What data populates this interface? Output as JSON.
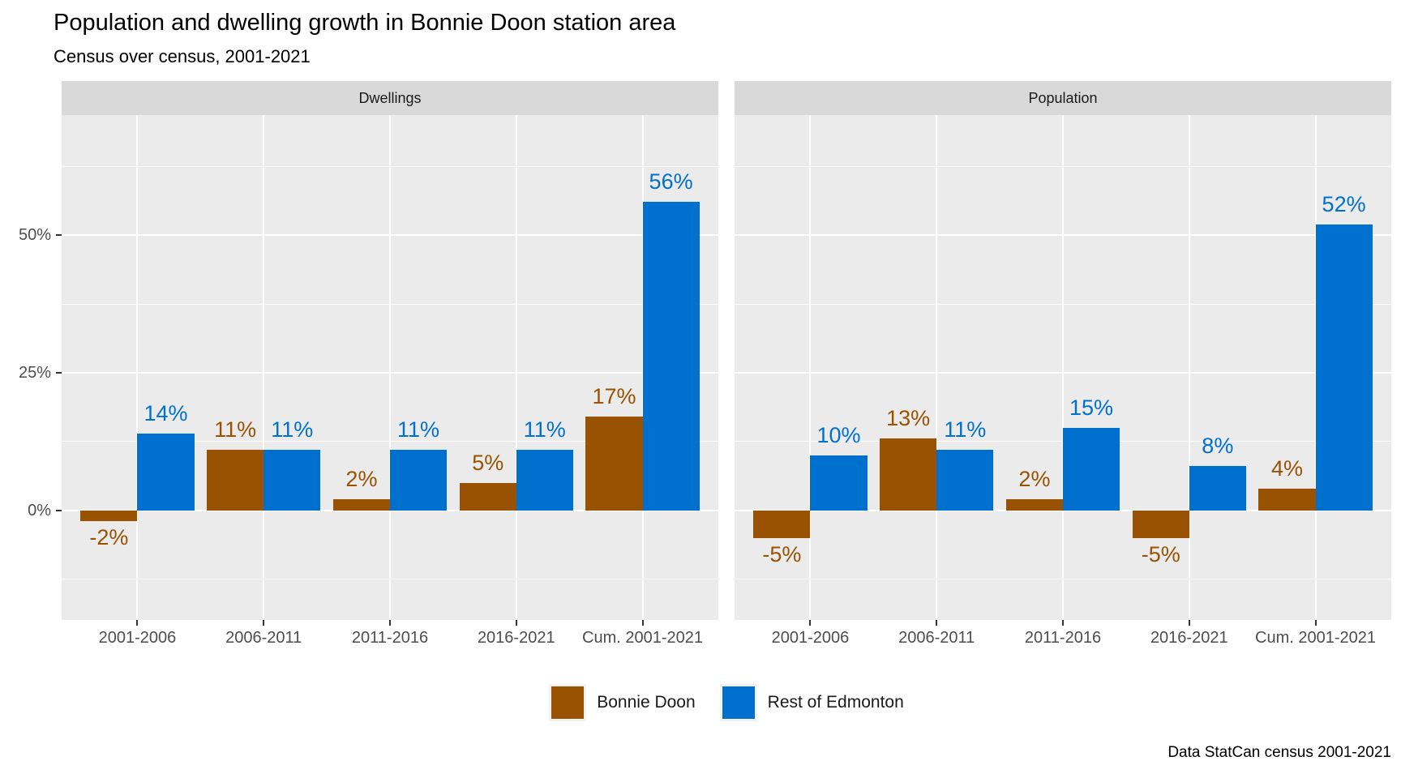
{
  "title": "Population and dwelling growth in Bonnie Doon station area",
  "subtitle": "Census over census, 2001-2021",
  "caption": "Data StatCan census 2001-2021",
  "legend": {
    "items": [
      {
        "label": "Bonnie Doon",
        "color": "#985202"
      },
      {
        "label": "Rest of Edmonton",
        "color": "#0070CE"
      }
    ]
  },
  "colors": {
    "panel_background": "#ebebeb",
    "strip_background": "#d9d9d9",
    "gridline": "#ffffff",
    "axis_text": "#4d4d4d",
    "tick_mark": "#333333",
    "bonnie_doon": "#985202",
    "rest_of_edmonton": "#0070CE"
  },
  "chart_data": {
    "type": "bar",
    "categories": [
      "2001-2006",
      "2006-2011",
      "2011-2016",
      "2016-2021",
      "Cum. 2001-2021"
    ],
    "facets": [
      {
        "label": "Dwellings",
        "series": [
          {
            "name": "Bonnie Doon",
            "values": [
              -2,
              11,
              2,
              5,
              17
            ],
            "labels": [
              "-2%",
              "11%",
              "2%",
              "5%",
              "17%"
            ]
          },
          {
            "name": "Rest of Edmonton",
            "values": [
              14,
              11,
              11,
              11,
              56
            ],
            "labels": [
              "14%",
              "11%",
              "11%",
              "11%",
              "56%"
            ]
          }
        ]
      },
      {
        "label": "Population",
        "series": [
          {
            "name": "Bonnie Doon",
            "values": [
              -5,
              13,
              2,
              -5,
              4
            ],
            "labels": [
              "-5%",
              "13%",
              "2%",
              "-5%",
              "4%"
            ]
          },
          {
            "name": "Rest of Edmonton",
            "values": [
              10,
              11,
              15,
              8,
              52
            ],
            "labels": [
              "10%",
              "11%",
              "15%",
              "8%",
              "52%"
            ]
          }
        ]
      }
    ],
    "y_ticks": [
      "0%",
      "25%",
      "50%"
    ],
    "y_tick_values": [
      0,
      25,
      50
    ],
    "y_gridlines_minor": [
      -12.5,
      12.5,
      37.5,
      62.5
    ],
    "ylim": [
      -19.9,
      71.8
    ],
    "xlabel": "",
    "ylabel": "",
    "grid": true,
    "legend_position": "bottom"
  }
}
